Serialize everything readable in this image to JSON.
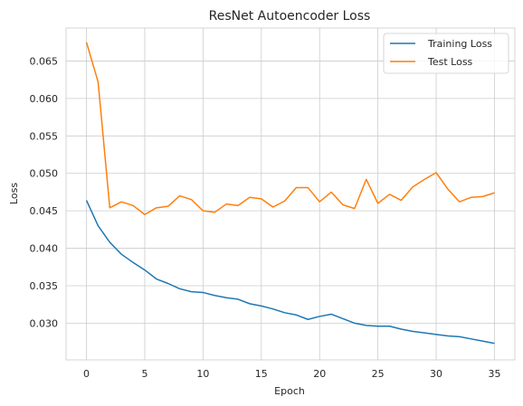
{
  "chart_data": {
    "type": "line",
    "title": "ResNet Autoencoder Loss",
    "xlabel": "Epoch",
    "ylabel": "Loss",
    "xlim": [
      -1.75,
      36.75
    ],
    "ylim": [
      0.0251,
      0.0694
    ],
    "xticks": [
      0,
      5,
      10,
      15,
      20,
      25,
      30,
      35
    ],
    "yticks": [
      0.03,
      0.035,
      0.04,
      0.045,
      0.05,
      0.055,
      0.06,
      0.065
    ],
    "ytick_labels": [
      "0.030",
      "0.035",
      "0.040",
      "0.045",
      "0.050",
      "0.055",
      "0.060",
      "0.065"
    ],
    "grid": true,
    "legend_position": "top-right",
    "x": [
      0,
      1,
      2,
      3,
      4,
      5,
      6,
      7,
      8,
      9,
      10,
      11,
      12,
      13,
      14,
      15,
      16,
      17,
      18,
      19,
      20,
      21,
      22,
      23,
      24,
      25,
      26,
      27,
      28,
      29,
      30,
      31,
      32,
      33,
      34,
      35
    ],
    "series": [
      {
        "name": "Training Loss",
        "color": "#1f77b4",
        "values": [
          0.0464,
          0.043,
          0.0408,
          0.0392,
          0.0381,
          0.0371,
          0.0359,
          0.0353,
          0.0346,
          0.0342,
          0.0341,
          0.0337,
          0.0334,
          0.0332,
          0.0326,
          0.0323,
          0.0319,
          0.0314,
          0.0311,
          0.0305,
          0.0309,
          0.0312,
          0.0306,
          0.03,
          0.0297,
          0.0296,
          0.0296,
          0.0292,
          0.0289,
          0.0287,
          0.0285,
          0.0283,
          0.0282,
          0.0279,
          0.0276,
          0.0273
        ]
      },
      {
        "name": "Test Loss",
        "color": "#ff7f0e",
        "values": [
          0.0675,
          0.0622,
          0.0454,
          0.0462,
          0.0457,
          0.0445,
          0.0454,
          0.0456,
          0.047,
          0.0465,
          0.045,
          0.0448,
          0.0459,
          0.0457,
          0.0468,
          0.0466,
          0.0455,
          0.0463,
          0.0481,
          0.0481,
          0.0462,
          0.0475,
          0.0458,
          0.0453,
          0.0492,
          0.046,
          0.0472,
          0.0464,
          0.0482,
          0.0492,
          0.0501,
          0.0479,
          0.0462,
          0.0468,
          0.0469,
          0.0474
        ]
      }
    ]
  }
}
